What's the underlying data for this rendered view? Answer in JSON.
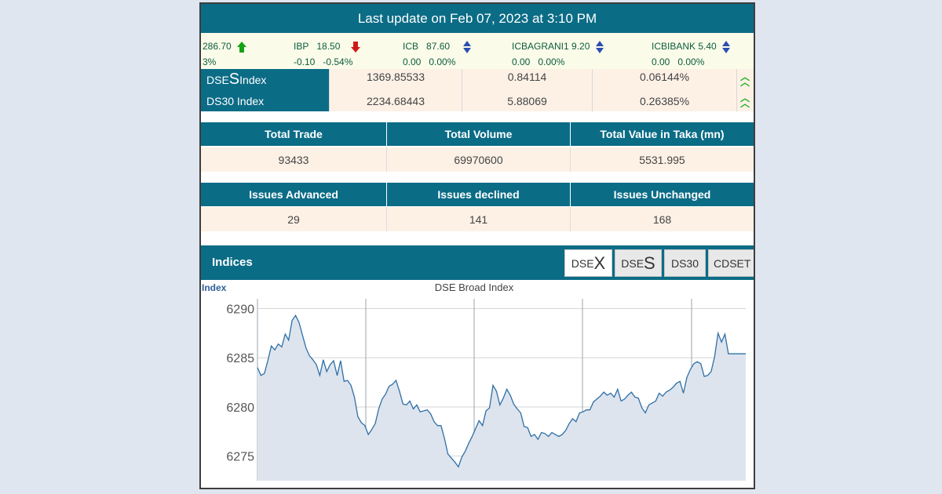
{
  "header": {
    "title": "Last update on Feb 07, 2023 at 3:10 PM"
  },
  "ticker": [
    {
      "name": "",
      "price": "286.70",
      "change": "",
      "pct": "3%",
      "dir": "up"
    },
    {
      "name": "IBP",
      "price": "18.50",
      "change": "-0.10",
      "pct": "-0.54%",
      "dir": "down"
    },
    {
      "name": "ICB",
      "price": "87.60",
      "change": "0.00",
      "pct": "0.00%",
      "dir": "flat"
    },
    {
      "name": "ICBAGRANI1",
      "price": "9.20",
      "change": "0.00",
      "pct": "0.00%",
      "dir": "flat"
    },
    {
      "name": "ICBIBANK",
      "price": "5.40",
      "change": "0.00",
      "pct": "0.00%",
      "dir": "flat"
    }
  ],
  "indices_table": [
    {
      "name_prefix": "DSE",
      "name_big": "S",
      "name_suffix": " Index",
      "value": "1369.85533",
      "change": "0.84114",
      "pct": "0.06144%",
      "trend": "up"
    },
    {
      "name_prefix": "DS30 Index",
      "name_big": "",
      "name_suffix": "",
      "value": "2234.68443",
      "change": "5.88069",
      "pct": "0.26385%",
      "trend": "up"
    }
  ],
  "summary1": {
    "headers": [
      "Total Trade",
      "Total Volume",
      "Total Value in Taka (mn)"
    ],
    "values": [
      "93433",
      "69970600",
      "5531.995"
    ]
  },
  "summary2": {
    "headers": [
      "Issues Advanced",
      "Issues declined",
      "Issues Unchanged"
    ],
    "values": [
      "29",
      "141",
      "168"
    ]
  },
  "indices_section": {
    "title": "Indices",
    "tabs": [
      {
        "prefix": "DSE",
        "big": "X",
        "active": true
      },
      {
        "prefix": "DSE",
        "big": "S",
        "active": false
      },
      {
        "prefix": "DS30",
        "big": "",
        "active": false
      },
      {
        "prefix": "CDSET",
        "big": "",
        "active": false
      }
    ]
  },
  "colors": {
    "header": "#0b6c86",
    "cell_bg": "#fdf1e6",
    "line": "#2f6fa6",
    "area": "#dde4ee"
  },
  "chart_data": {
    "type": "area",
    "title": "DSE Broad Index",
    "ylabel": "Index",
    "ylim": [
      6272.5,
      6291
    ],
    "yticks": [
      6275,
      6280,
      6285,
      6290
    ],
    "grid": true,
    "series": [
      {
        "values": [
          6284.0,
          6283.2,
          6283.4,
          6284.7,
          6286.2,
          6285.8,
          6286.4,
          6286.1,
          6287.4,
          6286.8,
          6288.8,
          6289.3,
          6288.6,
          6287.3,
          6286.0,
          6285.2,
          6284.8,
          6284.3,
          6283.2,
          6284.8,
          6283.6,
          6284.3,
          6284.7,
          6283.2,
          6284.7,
          6282.6,
          6282.7,
          6282.2,
          6281.0,
          6279.0,
          6278.4,
          6278.1,
          6277.2,
          6277.7,
          6278.3,
          6279.8,
          6280.8,
          6281.3,
          6282.1,
          6282.3,
          6282.7,
          6281.6,
          6280.3,
          6280.2,
          6280.6,
          6279.8,
          6280.2,
          6279.5,
          6279.6,
          6279.7,
          6279.3,
          6278.5,
          6278.1,
          6278.1,
          6276.8,
          6275.2,
          6274.8,
          6274.4,
          6273.9,
          6274.9,
          6275.5,
          6276.3,
          6277.0,
          6277.8,
          6278.6,
          6278.1,
          6279.6,
          6279.9,
          6282.2,
          6281.6,
          6280.2,
          6280.9,
          6281.8,
          6281.2,
          6280.3,
          6279.8,
          6279.4,
          6278.0,
          6277.9,
          6277.0,
          6277.2,
          6276.7,
          6277.4,
          6277.3,
          6277.0,
          6277.4,
          6277.2,
          6277.0,
          6277.2,
          6277.6,
          6278.3,
          6278.8,
          6278.5,
          6279.4,
          6279.5,
          6279.7,
          6279.7,
          6280.5,
          6280.8,
          6281.1,
          6281.5,
          6281.2,
          6281.4,
          6281.0,
          6281.8,
          6280.6,
          6280.8,
          6281.2,
          6281.5,
          6281.0,
          6280.9,
          6279.9,
          6279.4,
          6280.2,
          6280.4,
          6280.6,
          6281.4,
          6281.1,
          6281.5,
          6281.7,
          6282.0,
          6282.4,
          6282.6,
          6281.4,
          6283.0,
          6283.8,
          6284.4,
          6284.6,
          6284.4,
          6283.1,
          6283.2,
          6283.6,
          6285.1,
          6287.5,
          6286.6,
          6287.4,
          6285.4,
          6285.4,
          6285.4,
          6285.4,
          6285.4,
          6285.4
        ]
      }
    ]
  }
}
